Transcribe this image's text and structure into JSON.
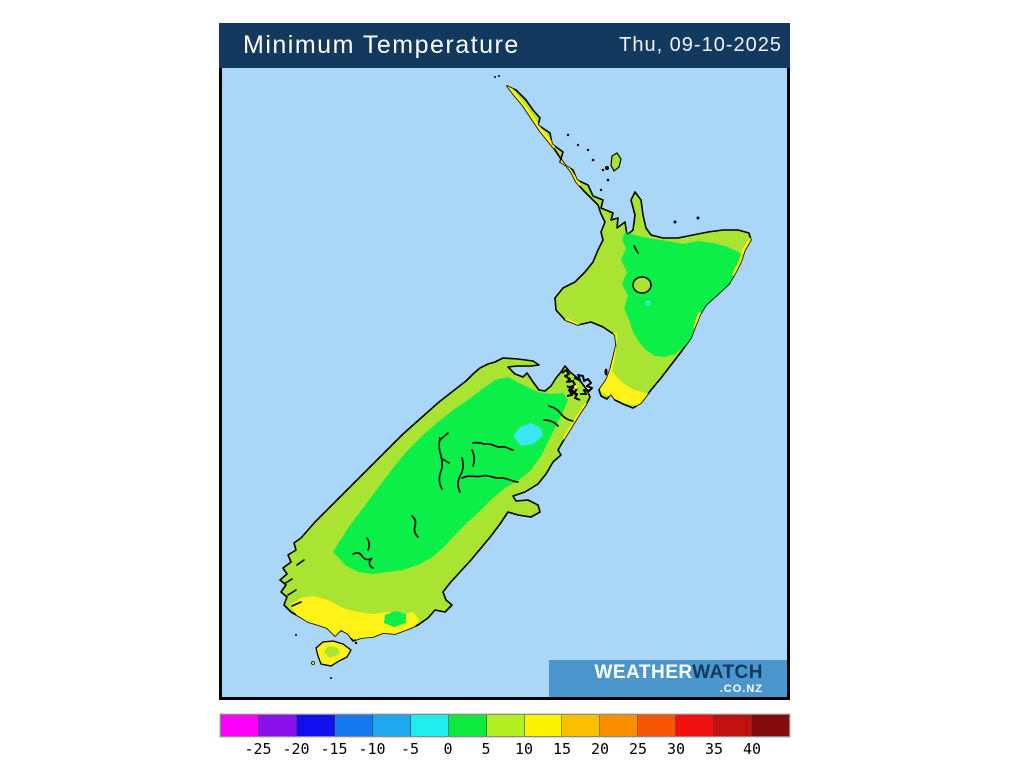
{
  "header": {
    "title": "Minimum Temperature",
    "date": "Thu, 09-10-2025"
  },
  "logo": {
    "weather": "WEATHER",
    "watch": "WATCH",
    "suffix": ".CO.NZ"
  },
  "colors": {
    "header_bg": "#14395e",
    "ocean": "#aad6f7",
    "land": "#a9e432",
    "green": "#0cee48",
    "yellow": "#fff217",
    "cyan": "#3be8f2",
    "coast": "#000000",
    "logo_bg": "#4c96ce"
  },
  "legend": {
    "swatch_colors": [
      "#fb00fb",
      "#8a10ee",
      "#1010ee",
      "#1578ee",
      "#1fa8f0",
      "#1feeee",
      "#0fe83c",
      "#b4f021",
      "#fbf200",
      "#fbc100",
      "#fa8e00",
      "#f85606",
      "#f01010",
      "#c11010",
      "#840c0c"
    ],
    "tick_labels": [
      "-25",
      "-20",
      "-15",
      "-10",
      "-5",
      "0",
      "5",
      "10",
      "15",
      "20",
      "25",
      "30",
      "35",
      "40"
    ]
  }
}
